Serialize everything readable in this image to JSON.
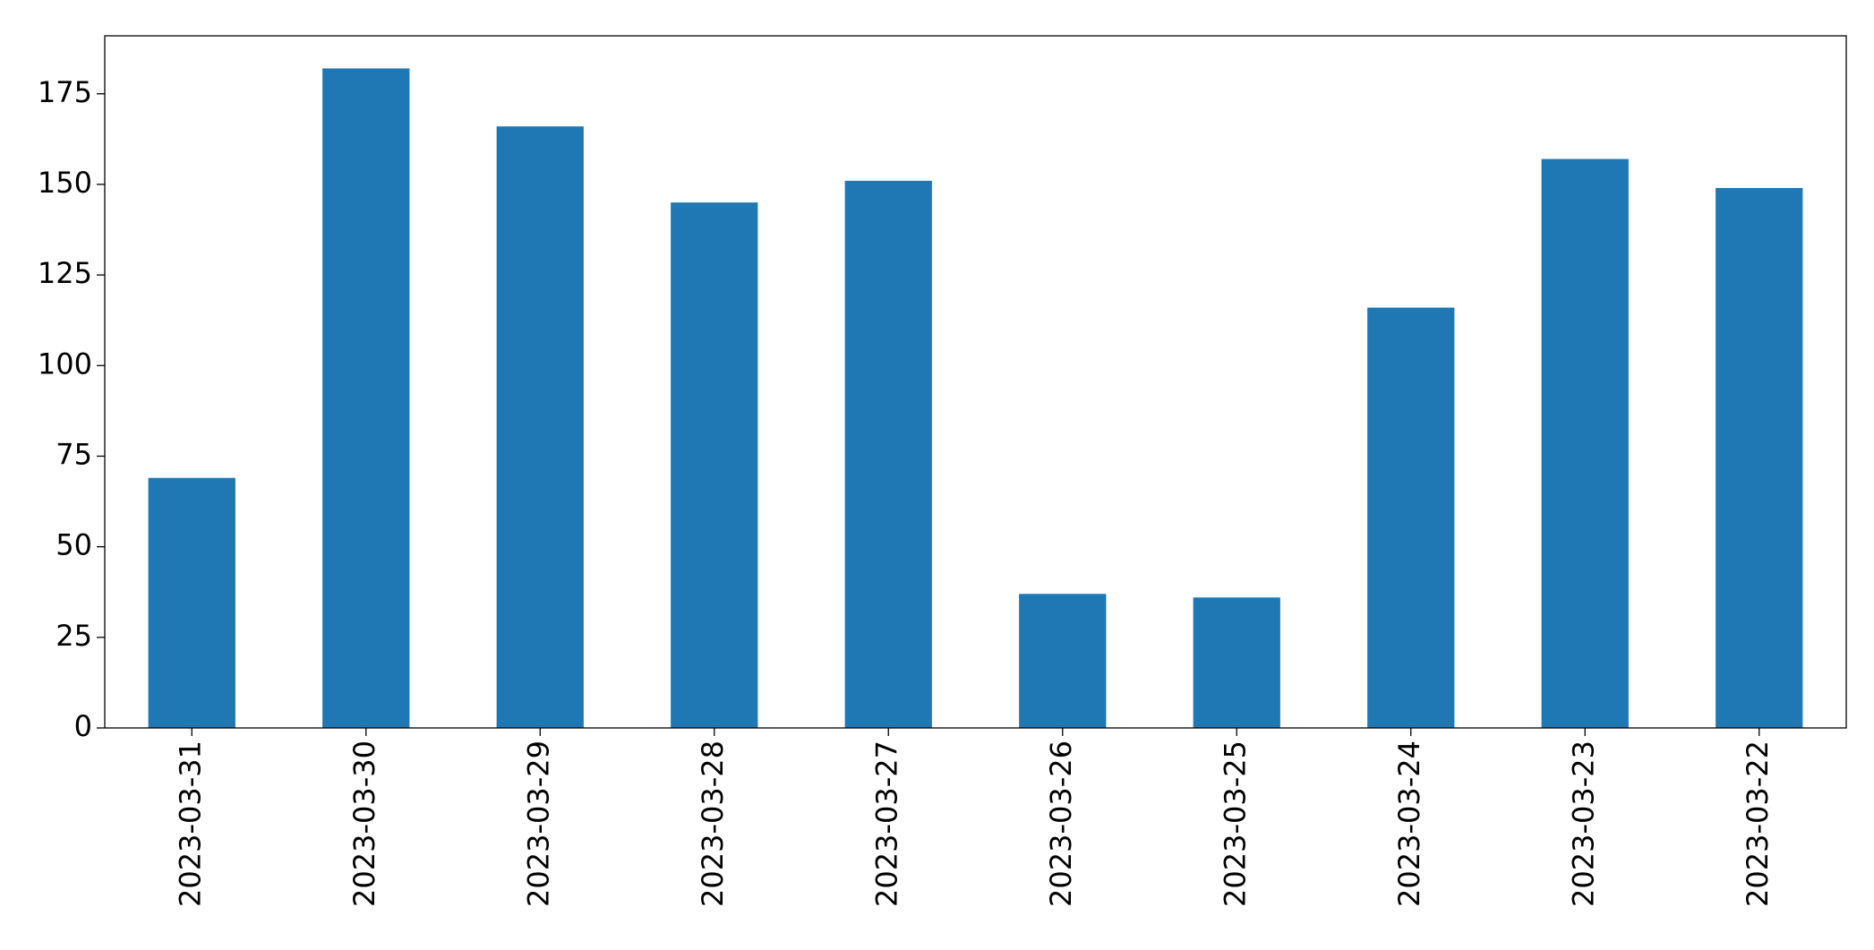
{
  "chart_data": {
    "type": "bar",
    "categories": [
      "2023-03-31",
      "2023-03-30",
      "2023-03-29",
      "2023-03-28",
      "2023-03-27",
      "2023-03-26",
      "2023-03-25",
      "2023-03-24",
      "2023-03-23",
      "2023-03-22"
    ],
    "values": [
      69,
      182,
      166,
      145,
      151,
      37,
      36,
      116,
      157,
      149
    ],
    "color": "#1f77b4",
    "ylim": [
      0,
      191
    ],
    "yticks": [
      0,
      25,
      50,
      75,
      100,
      125,
      150,
      175
    ],
    "grid": false
  }
}
